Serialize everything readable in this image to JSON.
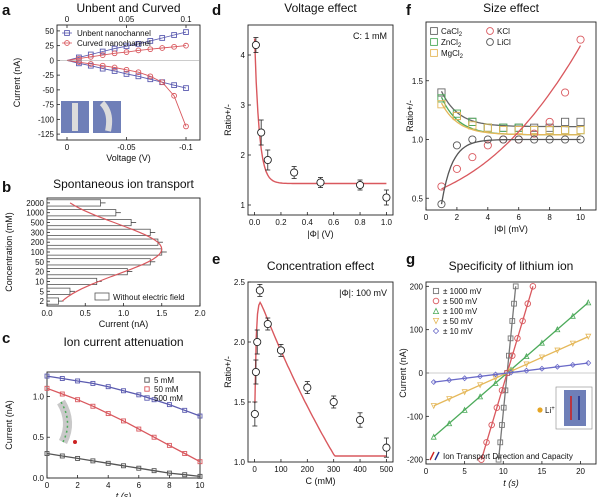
{
  "chart_data": [
    {
      "panel": "a",
      "type": "line",
      "title": "Unbent and Curved",
      "xlabel": "Voltage (V)",
      "ylabel": "Current (nA)",
      "xlim": [
        -0.11,
        0.11
      ],
      "ylim": [
        -135,
        60
      ],
      "x_top_ticks": [
        "0",
        "0.05",
        "0.1"
      ],
      "x_bottom_ticks": [
        "0",
        "-0.05",
        "-0.1"
      ],
      "y_ticks": [
        "50",
        "25",
        "0",
        "-25",
        "-50",
        "-75",
        "-100",
        "-125"
      ],
      "series": [
        {
          "name": "Unbent nanochannel",
          "color": "#5b5bb0",
          "marker": "square",
          "x": [
            0.01,
            0.02,
            0.03,
            0.04,
            0.05,
            0.06,
            0.07,
            0.08,
            0.09,
            0.1,
            -0.01,
            -0.02,
            -0.03,
            -0.04,
            -0.05,
            -0.06,
            -0.07,
            -0.08,
            -0.09,
            -0.1
          ],
          "y": [
            5,
            10,
            15,
            20,
            24,
            28,
            33,
            38,
            43,
            48,
            -5,
            -9,
            -14,
            -18,
            -23,
            -27,
            -32,
            -37,
            -42,
            -47
          ]
        },
        {
          "name": "Curved nanochannel",
          "color": "#d9585e",
          "marker": "circle",
          "x": [
            0.01,
            0.02,
            0.03,
            0.04,
            0.05,
            0.06,
            0.07,
            0.08,
            0.09,
            0.1,
            -0.01,
            -0.02,
            -0.03,
            -0.04,
            -0.05,
            -0.06,
            -0.07,
            -0.08,
            -0.09,
            -0.1
          ],
          "y": [
            3,
            6,
            9,
            12,
            14,
            17,
            19,
            21,
            23,
            25,
            -3,
            -6,
            -9,
            -12,
            -16,
            -20,
            -27,
            -37,
            -60,
            -112
          ]
        }
      ]
    },
    {
      "panel": "b",
      "type": "bar",
      "orientation": "horizontal",
      "title": "Spontaneous ion transport",
      "xlabel": "Current (nA)",
      "ylabel": "Concentration (mM)",
      "xlim": [
        0,
        2.0
      ],
      "x_ticks": [
        "0.0",
        "0.5",
        "1.0",
        "1.5",
        "2.0"
      ],
      "categories": [
        "2",
        "5",
        "10",
        "20",
        "50",
        "100",
        "200",
        "300",
        "500",
        "1000",
        "2000"
      ],
      "values": [
        0.15,
        0.3,
        0.65,
        1.05,
        1.35,
        1.5,
        1.45,
        1.35,
        1.1,
        0.9,
        0.7
      ],
      "fit_color": "#d9585e",
      "legend": "Without electric field"
    },
    {
      "panel": "c",
      "type": "line",
      "title": "Ion current attenuation",
      "xlabel": "t (s)",
      "ylabel": "Current (nA)",
      "xlim": [
        0,
        10
      ],
      "ylim": [
        0,
        1.3
      ],
      "x_ticks": [
        "0",
        "2",
        "4",
        "6",
        "8",
        "10"
      ],
      "y_ticks": [
        "0.0",
        "0.5",
        "1.0"
      ],
      "series": [
        {
          "name": "5 mM",
          "color": "#555555",
          "x": [
            0,
            1,
            2,
            3,
            4,
            5,
            6,
            7,
            8,
            9,
            10
          ],
          "y": [
            0.3,
            0.27,
            0.24,
            0.21,
            0.18,
            0.15,
            0.12,
            0.09,
            0.06,
            0.04,
            0.02
          ]
        },
        {
          "name": "50 mM",
          "color": "#d9585e",
          "x": [
            0,
            1,
            2,
            3,
            4,
            5,
            6,
            7,
            8,
            9,
            10
          ],
          "y": [
            1.1,
            1.03,
            0.96,
            0.88,
            0.79,
            0.7,
            0.6,
            0.5,
            0.4,
            0.3,
            0.2
          ]
        },
        {
          "name": "500 mM",
          "color": "#5b5bb0",
          "x": [
            0,
            1,
            2,
            3,
            4,
            5,
            6,
            7,
            8,
            9,
            10
          ],
          "y": [
            1.25,
            1.22,
            1.19,
            1.16,
            1.12,
            1.07,
            1.02,
            0.96,
            0.9,
            0.83,
            0.76
          ]
        }
      ]
    },
    {
      "panel": "d",
      "type": "scatter",
      "title": "Voltage effect",
      "annotation": "C: 1 mM",
      "xlabel": "|Φ| (V)",
      "ylabel": "Ratio+/-",
      "xlim": [
        -0.05,
        1.05
      ],
      "ylim": [
        0.8,
        4.6
      ],
      "x_ticks": [
        "0.0",
        "0.2",
        "0.4",
        "0.6",
        "0.8",
        "1.0"
      ],
      "y_ticks": [
        "1",
        "2",
        "3",
        "4"
      ],
      "points": {
        "x": [
          0.01,
          0.05,
          0.1,
          0.3,
          0.5,
          0.8,
          1.0
        ],
        "y": [
          4.2,
          2.45,
          1.9,
          1.65,
          1.45,
          1.4,
          1.15
        ],
        "err": [
          0.15,
          0.25,
          0.2,
          0.12,
          0.1,
          0.1,
          0.15
        ]
      },
      "fit_color": "#d9585e"
    },
    {
      "panel": "e",
      "type": "scatter",
      "title": "Concentration effect",
      "annotation": "|Φ|: 100 mV",
      "xlabel": "C (mM)",
      "ylabel": "Ratio+/-",
      "xlim": [
        -25,
        525
      ],
      "ylim": [
        1.0,
        2.5
      ],
      "x_ticks": [
        "0",
        "100",
        "200",
        "300",
        "400",
        "500"
      ],
      "y_ticks": [
        "1.0",
        "1.5",
        "2.0",
        "2.5"
      ],
      "points": {
        "x": [
          1,
          5,
          10,
          20,
          50,
          100,
          200,
          300,
          400,
          500
        ],
        "y": [
          1.4,
          1.75,
          2.0,
          2.43,
          2.15,
          1.93,
          1.62,
          1.5,
          1.35,
          1.12
        ],
        "err": [
          0.1,
          0.1,
          0.1,
          0.05,
          0.05,
          0.05,
          0.05,
          0.05,
          0.06,
          0.08
        ]
      },
      "fit_color": "#d9585e"
    },
    {
      "panel": "f",
      "type": "scatter",
      "title": "Size effect",
      "xlabel": "|Φ| (mV)",
      "ylabel": "Ratio+/-",
      "xlim": [
        0,
        11
      ],
      "ylim": [
        0.4,
        2.0
      ],
      "x_ticks": [
        "0",
        "2",
        "4",
        "6",
        "8",
        "10"
      ],
      "y_ticks": [
        "0.5",
        "1.0",
        "1.5"
      ],
      "series": [
        {
          "name": "CaCl2",
          "color": "#666666",
          "marker": "square",
          "x": [
            1,
            2,
            3,
            4,
            5,
            6,
            7,
            8,
            9,
            10
          ],
          "y": [
            1.4,
            1.2,
            1.15,
            1.1,
            1.1,
            1.1,
            1.1,
            1.1,
            1.15,
            1.15
          ]
        },
        {
          "name": "ZnCl2",
          "color": "#4caa5a",
          "marker": "square",
          "x": [
            1,
            2,
            3,
            4,
            5,
            6,
            7,
            8,
            9,
            10
          ],
          "y": [
            1.35,
            1.22,
            1.15,
            1.1,
            1.1,
            1.1,
            1.08,
            1.08,
            1.08,
            1.08
          ]
        },
        {
          "name": "MgCl2",
          "color": "#e5b85a",
          "marker": "square",
          "x": [
            1,
            2,
            3,
            4,
            5,
            6,
            7,
            8,
            9,
            10
          ],
          "y": [
            1.3,
            1.2,
            1.12,
            1.1,
            1.08,
            1.08,
            1.08,
            1.08,
            1.08,
            1.08
          ]
        },
        {
          "name": "KCl",
          "color": "#d9585e",
          "marker": "circle",
          "x": [
            1,
            2,
            3,
            4,
            5,
            6,
            7,
            8,
            9,
            10
          ],
          "y": [
            0.6,
            0.75,
            0.85,
            0.95,
            1.0,
            1.0,
            1.05,
            1.15,
            1.4,
            1.85
          ]
        },
        {
          "name": "LiCl",
          "color": "#555555",
          "marker": "circle",
          "x": [
            1,
            2,
            3,
            4,
            5,
            6,
            7,
            8,
            9,
            10
          ],
          "y": [
            0.45,
            0.95,
            1.0,
            1.0,
            1.0,
            1.0,
            1.0,
            1.0,
            1.0,
            1.0
          ]
        }
      ]
    },
    {
      "panel": "g",
      "type": "line",
      "title": "Specificity of lithium ion",
      "xlabel": "t (s)",
      "ylabel": "Current (nA)",
      "xlim": [
        0,
        22
      ],
      "ylim": [
        -210,
        210
      ],
      "x_ticks": [
        "0",
        "5",
        "10",
        "15",
        "20"
      ],
      "y_ticks": [
        "200",
        "100",
        "0",
        "-100",
        "-200"
      ],
      "annotation": "Ion Transport Direction and Capacity",
      "ion_label": "Li+",
      "series": [
        {
          "name": "± 1000 mV",
          "color": "#777777",
          "slope": 180
        },
        {
          "name": "± 500 mV",
          "color": "#d9585e",
          "slope": 60
        },
        {
          "name": "± 100 mV",
          "color": "#4caa5a",
          "slope": 15.5
        },
        {
          "name": "± 50 mV",
          "color": "#e5b85a",
          "slope": 8
        },
        {
          "name": "± 10 mV",
          "color": "#6a6ac8",
          "slope": 2.2
        }
      ]
    }
  ]
}
